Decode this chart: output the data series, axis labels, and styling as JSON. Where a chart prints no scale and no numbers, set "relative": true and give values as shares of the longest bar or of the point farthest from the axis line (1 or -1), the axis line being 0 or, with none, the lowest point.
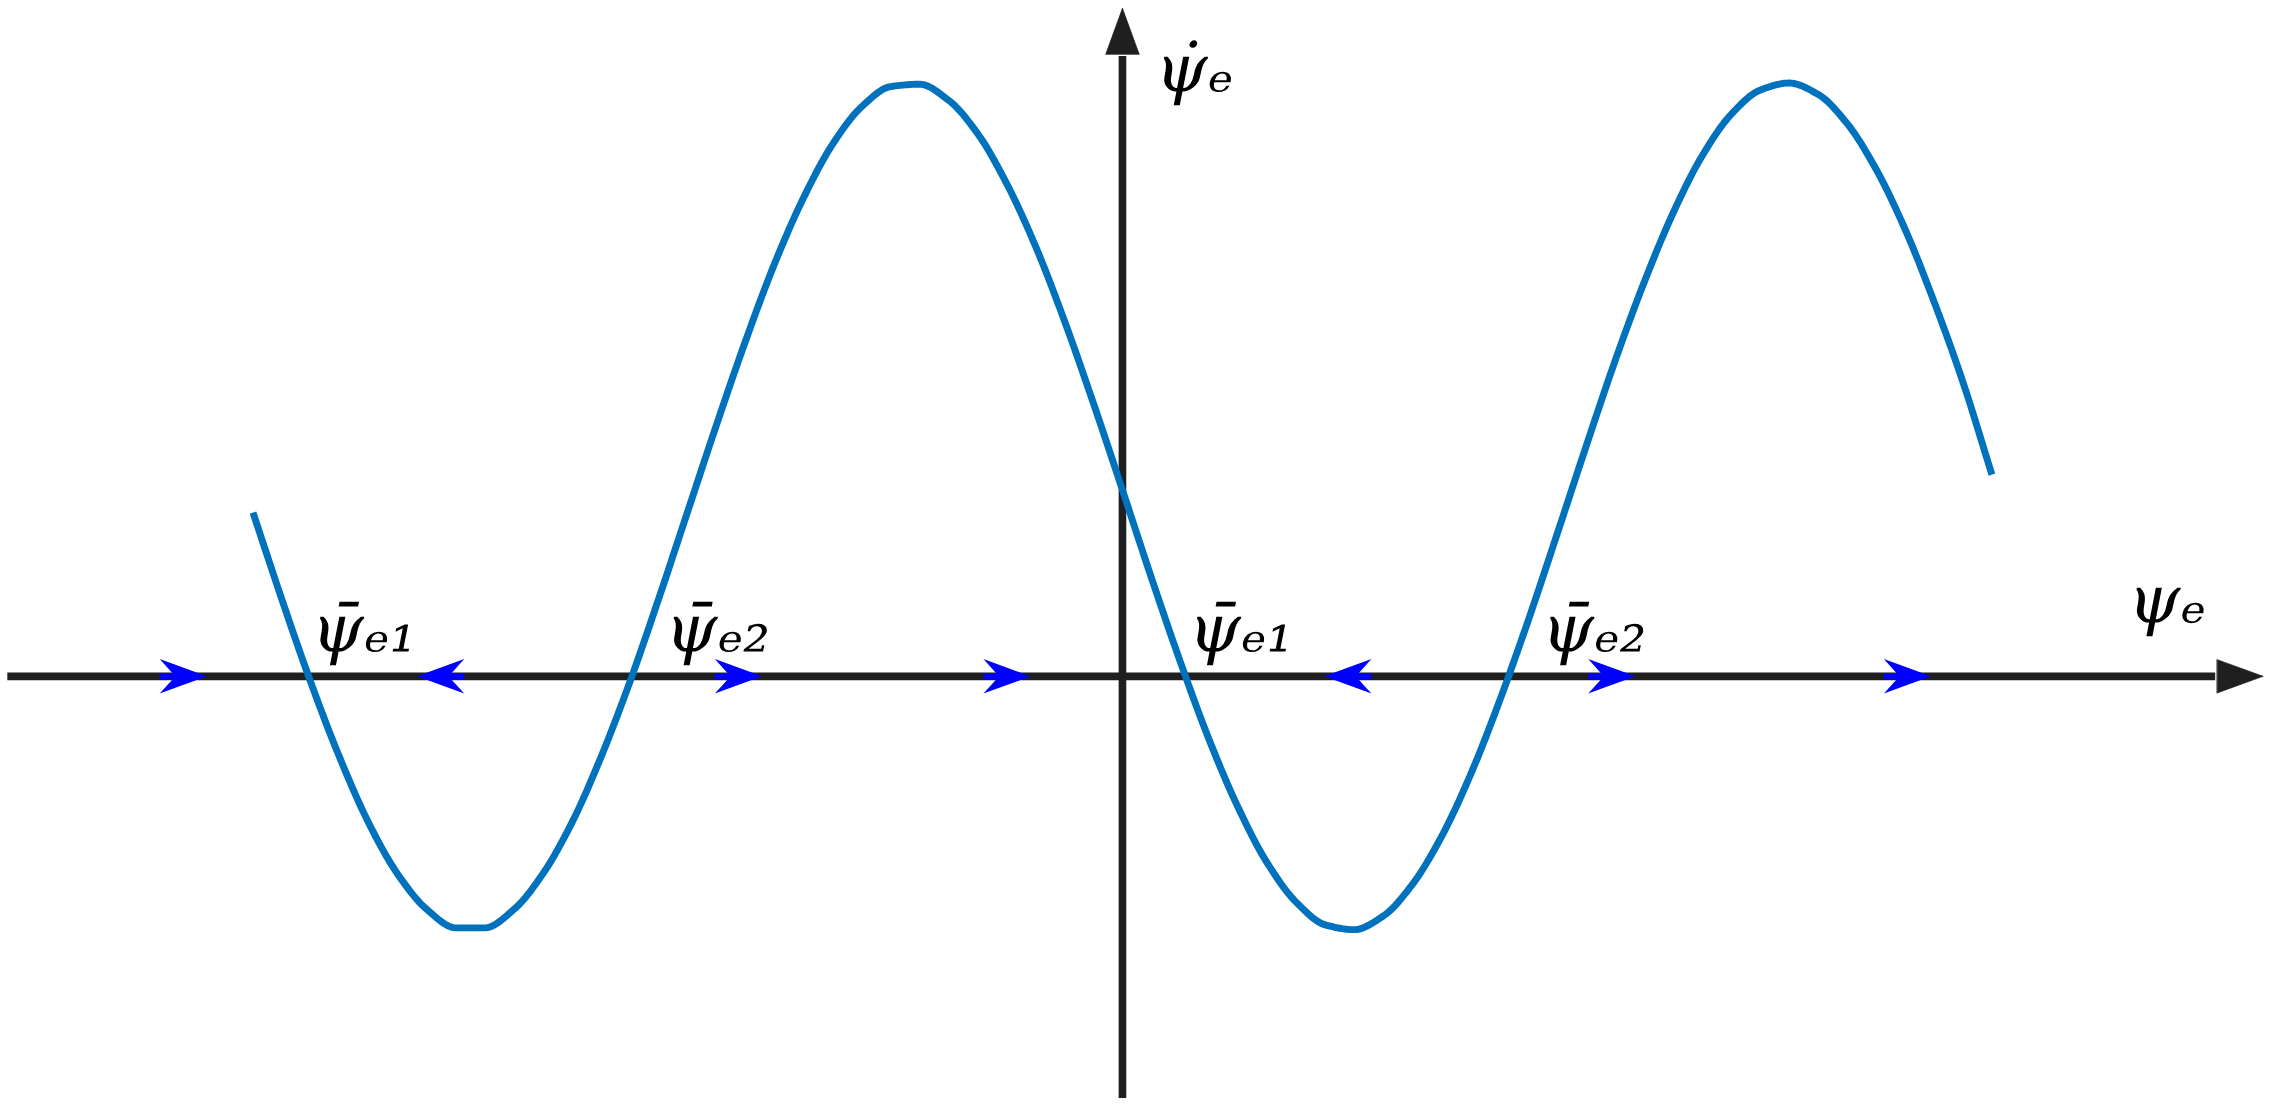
{
  "chart_data": {
    "type": "line",
    "relative": true,
    "xlabel": "ψₑ",
    "ylabel": "ψ̇ₑ",
    "categories": [
      null,
      null,
      null,
      null,
      null,
      null,
      null,
      null,
      null,
      null,
      null,
      null,
      null,
      null,
      null,
      null,
      null,
      null,
      null,
      null,
      null,
      null,
      null,
      null,
      null,
      null,
      null,
      null,
      null,
      null,
      null,
      null,
      null,
      null,
      null,
      null,
      null,
      null,
      null,
      null,
      null,
      null,
      null,
      null,
      null,
      null,
      null,
      null,
      null,
      null,
      null,
      null,
      null,
      null,
      null,
      null,
      null,
      null,
      null,
      null,
      null
    ],
    "series": [
      {
        "color": "#0072bd",
        "values": [
          0.276,
          0.129,
          -0.011,
          -0.138,
          -0.248,
          -0.334,
          -0.393,
          -0.424,
          -0.424,
          -0.393,
          -0.333,
          -0.247,
          -0.137,
          -0.01,
          0.131,
          0.278,
          0.425,
          0.566,
          0.696,
          0.807,
          0.897,
          0.96,
          0.994,
          0.998,
          0.971,
          0.915,
          0.831,
          0.725,
          0.599,
          0.46,
          0.314,
          0.166,
          0.024,
          -0.108,
          -0.222,
          -0.315,
          -0.381,
          -0.419,
          -0.427,
          -0.404,
          -0.351,
          -0.271,
          -0.167,
          -0.043,
          0.094,
          0.24,
          0.388,
          0.532,
          0.664,
          0.781,
          0.877,
          0.947,
          0.988,
          1,
          0.981,
          0.932,
          0.855,
          0.754,
          0.632,
          0.496,
          0.34
        ]
      }
    ],
    "annotations": [
      "ψ̄ₑ₁",
      "ψ̄ₑ₂",
      "ψ̄ₑ₁",
      "ψ̄ₑ₂"
    ]
  }
}
